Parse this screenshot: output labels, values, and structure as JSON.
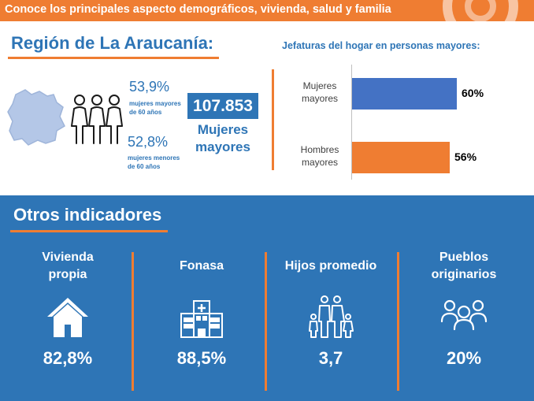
{
  "banner": {
    "text": "Conoce los principales aspecto demográficos, vivienda, salud y familia"
  },
  "region": {
    "title": "Región de La Araucanía:",
    "stat_top": {
      "value": "53,9%",
      "line1": "mujeres mayores",
      "line2": "de 60 años"
    },
    "stat_bottom": {
      "value": "52,8%",
      "line1": "mujeres menores",
      "line2": "de 60 años"
    },
    "total": {
      "value": "107.853",
      "line1": "Mujeres",
      "line2": "mayores"
    }
  },
  "chart_data": {
    "type": "bar",
    "orientation": "horizontal",
    "title": "Jefaturas del hogar en personas mayores:",
    "categories": [
      {
        "line1": "Mujeres",
        "line2": "mayores"
      },
      {
        "line1": "Hombres",
        "line2": "mayores"
      }
    ],
    "values": [
      60,
      56
    ],
    "value_labels": [
      "60%",
      "56%"
    ],
    "colors": [
      "#4472c4",
      "#ef7d32"
    ],
    "xlim": [
      0,
      100
    ]
  },
  "others": {
    "title": "Otros indicadores",
    "items": [
      {
        "line1": "Vivienda",
        "line2": "propia",
        "icon": "house-icon",
        "value": "82,8%"
      },
      {
        "line1": "Fonasa",
        "line2": "",
        "icon": "hospital-icon",
        "value": "88,5%"
      },
      {
        "line1": "Hijos promedio",
        "line2": "",
        "icon": "family-icon",
        "value": "3,7"
      },
      {
        "line1": "Pueblos",
        "line2": "originarios",
        "icon": "people-icon",
        "value": "20%"
      }
    ]
  },
  "colors": {
    "blue": "#2e75b6",
    "orange": "#ef7d32",
    "bar_blue": "#4472c4"
  }
}
